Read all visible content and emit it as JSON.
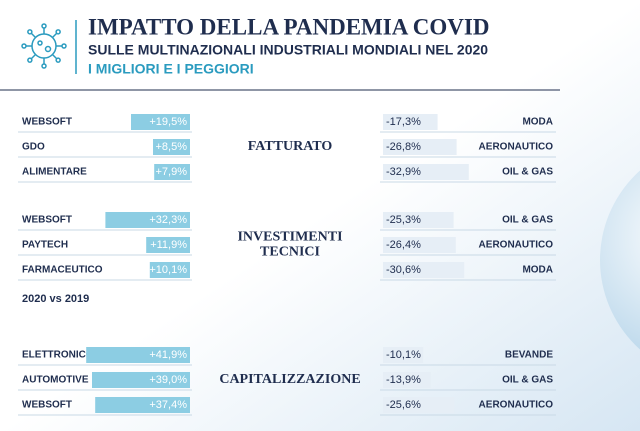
{
  "header": {
    "title": "IMPATTO DELLA PANDEMIA COVID",
    "subtitle": "SULLE MULTINAZIONALI INDUSTRIALI MONDIALI NEL 2020",
    "tagline": "I MIGLIORI E I PEGGIORI"
  },
  "sections": [
    {
      "label": [
        "FATTURATO"
      ],
      "best": [
        {
          "name": "WEBSOFT",
          "value": 19.5,
          "value_label": "+19,5%"
        },
        {
          "name": "GDO",
          "value": 8.5,
          "value_label": "+8,5%"
        },
        {
          "name": "ALIMENTARE",
          "value": 7.9,
          "value_label": "+7,9%"
        }
      ],
      "worst": [
        {
          "name": "MODA",
          "value": -17.3,
          "value_label": "-17,3%"
        },
        {
          "name": "AERONAUTICO",
          "value": -26.8,
          "value_label": "-26,8%"
        },
        {
          "name": "OIL & GAS",
          "value": -32.9,
          "value_label": "-32,9%"
        }
      ]
    },
    {
      "label": [
        "INVESTIMENTI",
        "TECNICI"
      ],
      "best": [
        {
          "name": "WEBSOFT",
          "value": 32.3,
          "value_label": "+32,3%"
        },
        {
          "name": "PAYTECH",
          "value": 11.9,
          "value_label": "+11,9%"
        },
        {
          "name": "FARMACEUTICO",
          "value": 10.1,
          "value_label": "+10,1%"
        }
      ],
      "worst": [
        {
          "name": "OIL & GAS",
          "value": -25.3,
          "value_label": "-25,3%"
        },
        {
          "name": "AERONAUTICO",
          "value": -26.4,
          "value_label": "-26,4%"
        },
        {
          "name": "MODA",
          "value": -30.6,
          "value_label": "-30,6%"
        }
      ]
    },
    {
      "label": [
        "CAPITALIZZAZIONE"
      ],
      "best": [
        {
          "name": "ELETTRONICO",
          "value": 41.9,
          "value_label": "+41,9%"
        },
        {
          "name": "AUTOMOTIVE",
          "value": 39.0,
          "value_label": "+39,0%"
        },
        {
          "name": "WEBSOFT",
          "value": 37.4,
          "value_label": "+37,4%"
        }
      ],
      "worst": [
        {
          "name": "BEVANDE",
          "value": -10.1,
          "value_label": "-10,1%"
        },
        {
          "name": "OIL & GAS",
          "value": -13.9,
          "value_label": "-13,9%"
        },
        {
          "name": "AERONAUTICO",
          "value": -25.6,
          "value_label": "-25,6%"
        }
      ]
    }
  ],
  "note": "2020 vs 2019"
}
